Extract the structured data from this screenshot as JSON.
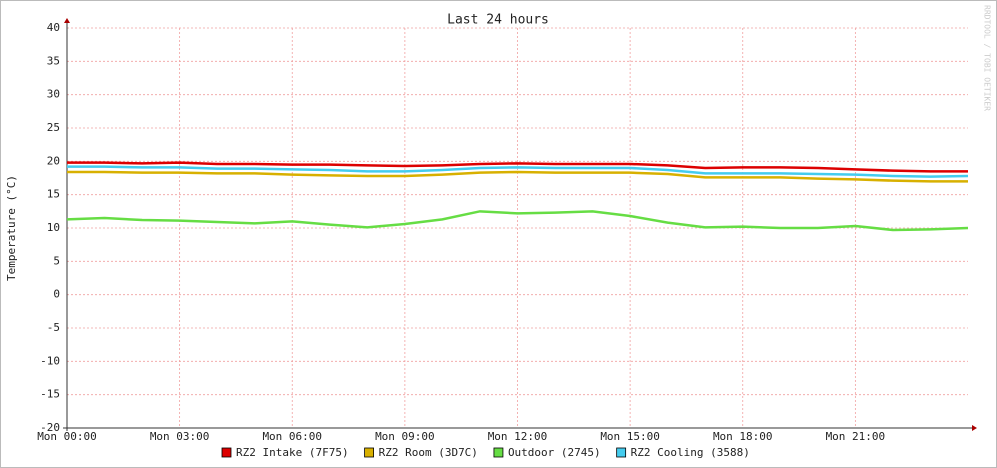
{
  "chart_data": {
    "type": "line",
    "title": "Last 24 hours",
    "y_label": "Temperature (°C)",
    "watermark": "RRDTOOL / TOBI OETIKER",
    "x": [
      0,
      1,
      2,
      3,
      4,
      5,
      6,
      7,
      8,
      9,
      10,
      11,
      12,
      13,
      14,
      15,
      16,
      17,
      18,
      19,
      20,
      21,
      22,
      23,
      24
    ],
    "xlim": [
      0,
      24
    ],
    "xticks": [
      {
        "value": 0,
        "label": "Mon 00:00"
      },
      {
        "value": 3,
        "label": "Mon 03:00"
      },
      {
        "value": 6,
        "label": "Mon 06:00"
      },
      {
        "value": 9,
        "label": "Mon 09:00"
      },
      {
        "value": 12,
        "label": "Mon 12:00"
      },
      {
        "value": 15,
        "label": "Mon 15:00"
      },
      {
        "value": 18,
        "label": "Mon 18:00"
      },
      {
        "value": 21,
        "label": "Mon 21:00"
      }
    ],
    "ylim": [
      -20,
      40
    ],
    "yticks": [
      -20,
      -15,
      -10,
      -5,
      0,
      5,
      10,
      15,
      20,
      25,
      30,
      35,
      40
    ],
    "grid": true,
    "series": [
      {
        "name": "RZ2 Intake (7F75)",
        "color": "#dd0000",
        "values": [
          19.8,
          19.8,
          19.7,
          19.8,
          19.6,
          19.6,
          19.5,
          19.5,
          19.4,
          19.3,
          19.4,
          19.6,
          19.7,
          19.6,
          19.6,
          19.6,
          19.4,
          19.0,
          19.1,
          19.1,
          19.0,
          18.8,
          18.6,
          18.5,
          18.5
        ]
      },
      {
        "name": "RZ2 Room (3D7C)",
        "color": "#d8b000",
        "values": [
          18.4,
          18.4,
          18.3,
          18.3,
          18.2,
          18.2,
          18.0,
          17.9,
          17.8,
          17.8,
          18.0,
          18.3,
          18.4,
          18.3,
          18.3,
          18.3,
          18.1,
          17.6,
          17.6,
          17.6,
          17.4,
          17.3,
          17.1,
          17.0,
          17.0
        ]
      },
      {
        "name": "Outdoor (2745)",
        "color": "#66dd44",
        "values": [
          11.3,
          11.5,
          11.2,
          11.1,
          10.9,
          10.7,
          11.0,
          10.5,
          10.1,
          10.6,
          11.3,
          12.5,
          12.2,
          12.3,
          12.5,
          11.8,
          10.8,
          10.1,
          10.2,
          10.0,
          10.0,
          10.3,
          9.7,
          9.8,
          10.0
        ]
      },
      {
        "name": "RZ2 Cooling (3588)",
        "color": "#44ccee",
        "values": [
          19.2,
          19.2,
          19.1,
          19.1,
          18.9,
          18.9,
          18.8,
          18.7,
          18.5,
          18.5,
          18.7,
          19.0,
          19.1,
          19.0,
          19.0,
          19.0,
          18.7,
          18.2,
          18.2,
          18.2,
          18.1,
          18.0,
          17.8,
          17.7,
          17.8
        ]
      }
    ]
  }
}
